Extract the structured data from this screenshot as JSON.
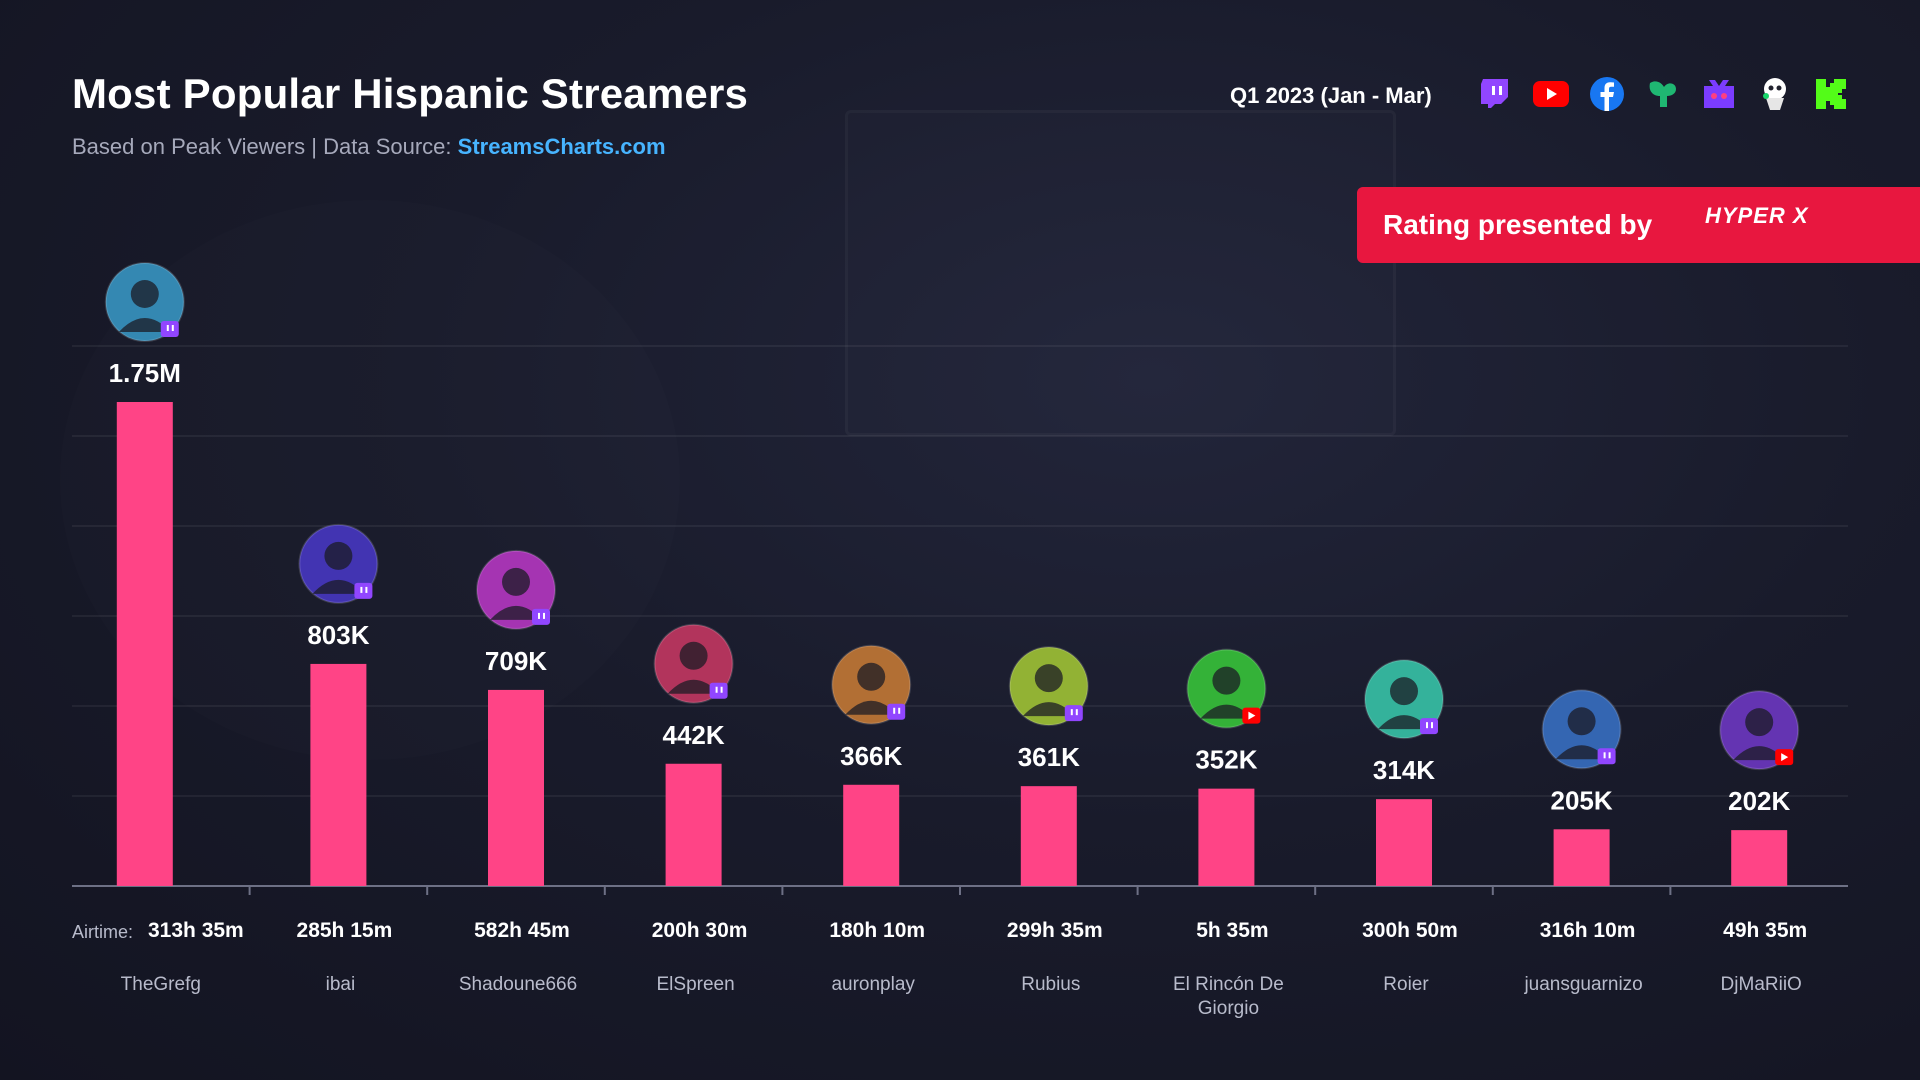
{
  "header": {
    "title": "Most Popular Hispanic Streamers",
    "subtitle_prefix": "Based on Peak Viewers  |  Data Source: ",
    "subtitle_link": "StreamsCharts.com",
    "period": "Q1 2023 (Jan - Mar)"
  },
  "platforms": [
    {
      "icon": "twitch-icon",
      "color": "#9146ff"
    },
    {
      "icon": "youtube-icon",
      "color": "#ff0000"
    },
    {
      "icon": "facebook-icon",
      "color": "#1877f2"
    },
    {
      "icon": "nimo-icon",
      "color": "#1fb772"
    },
    {
      "icon": "booyah-icon",
      "color": "#7b3cff"
    },
    {
      "icon": "trovo-icon",
      "color": "#ffffff"
    },
    {
      "icon": "kick-icon",
      "color": "#53fc18"
    }
  ],
  "banner": {
    "text": "Rating presented by",
    "sponsor": "HYPER X",
    "color": "#e8173f"
  },
  "airtime_label": "Airtime:",
  "colors": {
    "bar": "#ff4486",
    "twitch_badge": "#9146ff",
    "youtube_badge": "#ff0000"
  },
  "chart_data": {
    "type": "bar",
    "title": "Most Popular Hispanic Streamers",
    "categories": [
      "TheGrefg",
      "ibai",
      "Shadoune666",
      "ElSpreen",
      "auronplay",
      "Rubius",
      "El Rincón De Giorgio",
      "Roier",
      "juansguarnizo",
      "DjMaRiiO"
    ],
    "values": [
      1750000,
      803000,
      709000,
      442000,
      366000,
      361000,
      352000,
      314000,
      205000,
      202000
    ],
    "value_labels": [
      "1.75M",
      "803K",
      "709K",
      "442K",
      "366K",
      "361K",
      "352K",
      "314K",
      "205K",
      "202K"
    ],
    "airtime": [
      "313h 35m",
      "285h 15m",
      "582h 45m",
      "200h 30m",
      "180h 10m",
      "299h 35m",
      "5h 35m",
      "300h 50m",
      "316h 10m",
      "49h 35m"
    ],
    "platform": [
      "twitch",
      "twitch",
      "twitch",
      "twitch",
      "twitch",
      "twitch",
      "youtube",
      "twitch",
      "twitch",
      "youtube"
    ],
    "ylim": [
      0,
      1750000
    ],
    "grid": true,
    "legend": "none"
  }
}
